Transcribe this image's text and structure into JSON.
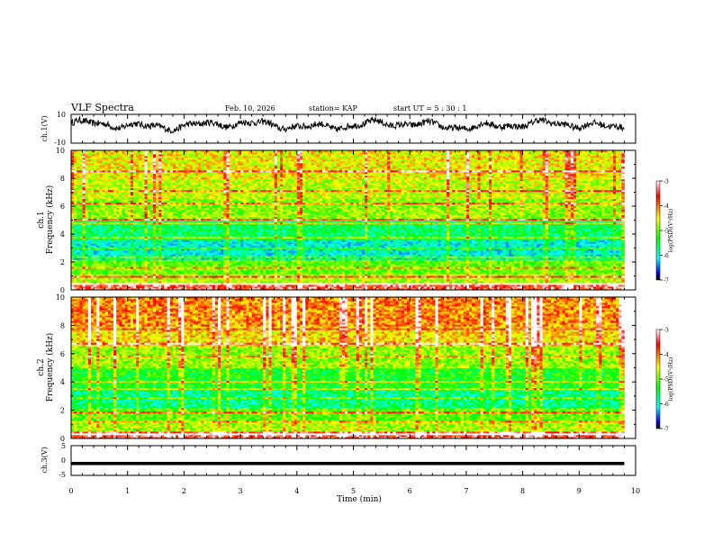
{
  "header": {
    "title": "VLF Spectra",
    "date": "Feb. 10, 2026",
    "station": "station= KAP",
    "start": "start  UT =   5  : 30 : 1"
  },
  "chart_data": [
    {
      "id": "ch1-waveform",
      "type": "line",
      "ylabel": "ch.1(V)",
      "ylim": [
        -10,
        10
      ],
      "yticks": [
        "10",
        "-10"
      ],
      "xlim": [
        0,
        10
      ],
      "x_end": 9.8,
      "baseline": 2.5,
      "amplitude": 4.5
    },
    {
      "id": "ch1-spectrogram",
      "type": "heatmap",
      "channel_label": "ch.1",
      "ylabel": "Frequency (kHz)",
      "ylim": [
        0,
        10
      ],
      "yticks": [
        "0",
        "2",
        "4",
        "6",
        "8",
        "10"
      ],
      "xlim": [
        0,
        10
      ],
      "x_end": 9.8,
      "colorbar": {
        "label": "log(PSD)(V²/Hz)",
        "range": [
          -7,
          -3
        ],
        "ticks": [
          "-3",
          "-4",
          "-5",
          "-6",
          "-7"
        ]
      }
    },
    {
      "id": "ch2-spectrogram",
      "type": "heatmap",
      "channel_label": "ch.2",
      "ylabel": "Frequency (kHz)",
      "ylim": [
        0,
        10
      ],
      "yticks": [
        "0",
        "2",
        "4",
        "6",
        "8",
        "10"
      ],
      "xlim": [
        0,
        10
      ],
      "x_end": 9.8,
      "colorbar": {
        "label": "log(PSD)(V²/Hz)",
        "range": [
          -7,
          -3
        ],
        "ticks": [
          "-3",
          "-4",
          "-5",
          "-6",
          "-7"
        ]
      }
    },
    {
      "id": "ch3-waveform",
      "type": "line",
      "ylabel": "ch.3(V)",
      "ylim": [
        -5,
        5
      ],
      "yticks": [
        "5",
        "0",
        "-5"
      ],
      "xlim": [
        0,
        10
      ],
      "x_end": 9.8,
      "baseline": -1.0,
      "thickness": 1.1
    }
  ],
  "xaxis": {
    "label": "Time (min)",
    "ticks": [
      "0",
      "1",
      "2",
      "3",
      "4",
      "5",
      "6",
      "7",
      "8",
      "9",
      "10"
    ]
  },
  "colors": {
    "red": "#ff0000",
    "yellow": "#ffff00",
    "green": "#00ff00",
    "cyan": "#00ffff",
    "blue": "#0000ff",
    "black": "#000000"
  }
}
